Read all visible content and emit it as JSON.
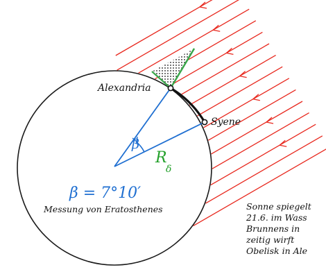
{
  "labels": {
    "alexandria": "Alexandria",
    "syene": "Syene",
    "beta": "β",
    "radius_main": "R",
    "radius_sub": "δ",
    "formula": "β = 7°10′",
    "caption": "Messung von Eratosthenes"
  },
  "note_lines": [
    "Sonne spiegelt",
    "21.6. im Wass",
    "Brunnens in",
    "zeitig wirft",
    "Obelisk in Ale"
  ],
  "colors": {
    "rays": "#e8281e",
    "earth_outline": "#1a1a1a",
    "radius_lines": "#1f6fd1",
    "radius_label": "#23a02a",
    "shadow_fill": "#3aa64a",
    "text": "#111111"
  }
}
